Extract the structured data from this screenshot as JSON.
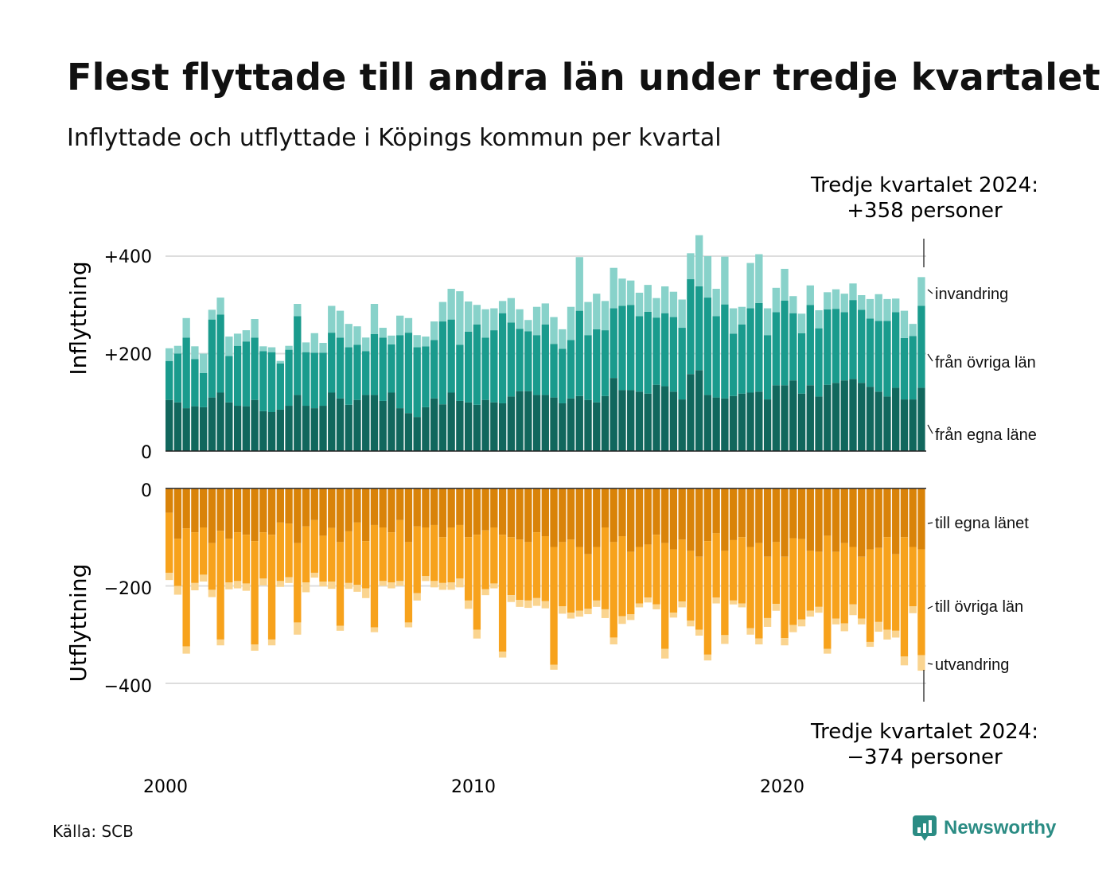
{
  "title": "Flest flyttade till andra län under tredje kvartalet",
  "subtitle": "Inflyttade och utflyttade i Köpings kommun per kvartal",
  "source": "Källa: SCB",
  "brand": "Newsworthy",
  "colors": {
    "in_own": "#11675d",
    "in_other": "#1a9b8d",
    "in_immigration": "#88d2ca",
    "out_own": "#d98309",
    "out_other": "#f7a21c",
    "out_emigration": "#fad48f",
    "grid": "#dddddd",
    "brand": "#2b8c84"
  },
  "chart_data": [
    {
      "type": "bar",
      "stacked": true,
      "ylabel": "Inflyttning",
      "yticks": [
        "0",
        "+200",
        "+400"
      ],
      "ylim": [
        0,
        460
      ],
      "annotation": {
        "line1": "Tredje kvartalet 2024:",
        "line2": "+358 personer"
      },
      "x_start": "2000 Q1",
      "x_end": "2024 Q3",
      "series": [
        {
          "name": "från egna länet",
          "label": "från egna läne",
          "values": [
            105,
            100,
            88,
            92,
            90,
            110,
            120,
            100,
            93,
            92,
            105,
            82,
            80,
            85,
            93,
            115,
            93,
            88,
            93,
            120,
            108,
            95,
            105,
            115,
            115,
            103,
            120,
            88,
            78,
            70,
            90,
            108,
            96,
            120,
            103,
            100,
            95,
            105,
            100,
            98,
            112,
            123,
            123,
            115,
            115,
            110,
            98,
            108,
            113,
            105,
            100,
            113,
            150,
            125,
            125,
            122,
            118,
            136,
            133,
            122,
            106,
            158,
            166,
            115,
            110,
            108,
            113,
            118,
            120,
            122,
            106,
            135,
            135,
            145,
            118,
            135,
            112,
            136,
            140,
            145,
            148,
            140,
            132,
            122,
            112,
            130,
            106,
            106,
            130
          ]
        },
        {
          "name": "från övriga län",
          "label": "från övriga län",
          "values": [
            80,
            100,
            145,
            97,
            70,
            160,
            160,
            95,
            123,
            133,
            128,
            123,
            123,
            95,
            115,
            162,
            110,
            114,
            109,
            123,
            125,
            118,
            113,
            90,
            125,
            130,
            99,
            150,
            165,
            143,
            125,
            120,
            170,
            150,
            115,
            145,
            165,
            128,
            148,
            185,
            152,
            128,
            123,
            123,
            145,
            110,
            112,
            120,
            175,
            133,
            150,
            135,
            143,
            173,
            175,
            155,
            168,
            138,
            150,
            153,
            147,
            195,
            172,
            200,
            167,
            193,
            128,
            142,
            173,
            182,
            132,
            150,
            174,
            138,
            124,
            165,
            140,
            155,
            152,
            140,
            162,
            150,
            140,
            145,
            155,
            155,
            126,
            130,
            168
          ]
        },
        {
          "name": "invandring",
          "label": "invandring",
          "values": [
            26,
            16,
            40,
            26,
            40,
            20,
            35,
            40,
            25,
            23,
            38,
            10,
            10,
            5,
            8,
            25,
            20,
            40,
            20,
            55,
            55,
            48,
            38,
            28,
            62,
            20,
            18,
            40,
            30,
            25,
            20,
            38,
            40,
            63,
            110,
            62,
            40,
            58,
            45,
            25,
            50,
            40,
            23,
            58,
            43,
            55,
            40,
            68,
            110,
            68,
            73,
            60,
            83,
            56,
            50,
            48,
            55,
            40,
            55,
            52,
            58,
            53,
            105,
            85,
            56,
            98,
            52,
            36,
            93,
            100,
            55,
            50,
            65,
            35,
            40,
            40,
            37,
            35,
            40,
            38,
            34,
            30,
            40,
            55,
            45,
            28,
            56,
            25,
            59
          ]
        }
      ]
    },
    {
      "type": "bar",
      "stacked": true,
      "ylabel": "Utflyttning",
      "yticks": [
        "0",
        "−200",
        "−400"
      ],
      "ylim": [
        -420,
        0
      ],
      "annotation": {
        "line1": "Tredje kvartalet 2024:",
        "line2": "−374 personer"
      },
      "x_start": "2000 Q1",
      "x_end": "2024 Q3",
      "xticks": [
        "2000",
        "2010",
        "2020"
      ],
      "series": [
        {
          "name": "till egna länet",
          "label": "till egna länet",
          "values": [
            -50,
            -103,
            -82,
            -90,
            -80,
            -112,
            -87,
            -103,
            -90,
            -95,
            -108,
            -90,
            -95,
            -70,
            -72,
            -112,
            -78,
            -65,
            -97,
            -81,
            -110,
            -88,
            -70,
            -108,
            -75,
            -80,
            -90,
            -65,
            -110,
            -78,
            -80,
            -75,
            -100,
            -80,
            -75,
            -100,
            -95,
            -86,
            -80,
            -95,
            -100,
            -105,
            -110,
            -90,
            -98,
            -120,
            -110,
            -105,
            -120,
            -135,
            -120,
            -80,
            -110,
            -98,
            -130,
            -120,
            -115,
            -95,
            -112,
            -125,
            -105,
            -128,
            -140,
            -108,
            -92,
            -128,
            -106,
            -100,
            -120,
            -112,
            -140,
            -110,
            -140,
            -102,
            -104,
            -128,
            -130,
            -97,
            -130,
            -112,
            -120,
            -140,
            -125,
            -122,
            -100,
            -135,
            -100,
            -120,
            -125
          ]
        },
        {
          "name": "till övriga län",
          "label": "till övriga län",
          "values": [
            -123,
            -97,
            -242,
            -104,
            -97,
            -96,
            -223,
            -90,
            -100,
            -100,
            -212,
            -95,
            -215,
            -120,
            -110,
            -163,
            -115,
            -108,
            -94,
            -110,
            -172,
            -106,
            -128,
            -97,
            -210,
            -110,
            -103,
            -125,
            -165,
            -137,
            -100,
            -115,
            -94,
            -113,
            -110,
            -130,
            -195,
            -121,
            -115,
            -240,
            -119,
            -124,
            -120,
            -135,
            -133,
            -242,
            -132,
            -150,
            -131,
            -112,
            -110,
            -168,
            -196,
            -164,
            -128,
            -116,
            -109,
            -143,
            -217,
            -130,
            -127,
            -143,
            -150,
            -233,
            -132,
            -173,
            -124,
            -136,
            -167,
            -196,
            -126,
            -127,
            -167,
            -178,
            -165,
            -123,
            -113,
            -232,
            -137,
            -165,
            -118,
            -127,
            -190,
            -152,
            -190,
            -157,
            -245,
            -122,
            -217
          ]
        },
        {
          "name": "utvandring",
          "label": "utvandring",
          "values": [
            -15,
            -18,
            -15,
            -15,
            -14,
            -15,
            -12,
            -14,
            -15,
            -15,
            -13,
            -14,
            -12,
            -12,
            -12,
            -25,
            -20,
            -10,
            -10,
            -15,
            -10,
            -12,
            -14,
            -20,
            -10,
            -10,
            -12,
            -10,
            -10,
            -15,
            -10,
            -13,
            -14,
            -15,
            -18,
            -17,
            -18,
            -12,
            -10,
            -12,
            -14,
            -14,
            -15,
            -16,
            -15,
            -10,
            -15,
            -12,
            -12,
            -11,
            -13,
            -18,
            -14,
            -16,
            -12,
            -8,
            -10,
            -10,
            -20,
            -10,
            -12,
            -12,
            -12,
            -12,
            -12,
            -18,
            -8,
            -8,
            -13,
            -12,
            -18,
            -14,
            -15,
            -15,
            -14,
            -12,
            -12,
            -10,
            -12,
            -16,
            -22,
            -12,
            -10,
            -20,
            -20,
            -14,
            -18,
            -14,
            -32
          ]
        }
      ]
    }
  ]
}
